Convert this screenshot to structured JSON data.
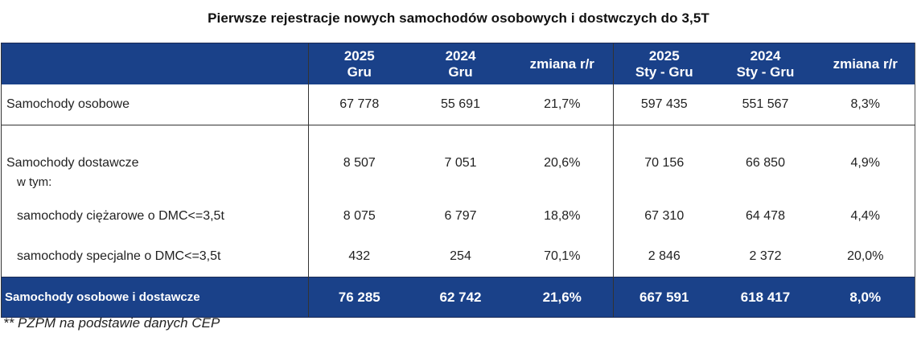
{
  "title": "Pierwsze rejestracje nowych samochodów osobowych i dostwczych do 3,5T",
  "header": {
    "label": "",
    "columns": [
      {
        "line1": "2025",
        "line2": "Gru"
      },
      {
        "line1": "2024",
        "line2": "Gru"
      },
      {
        "line1": "zmiana r/r",
        "line2": ""
      },
      {
        "line1": "2025",
        "line2": "Sty - Gru"
      },
      {
        "line1": "2024",
        "line2": "Sty - Gru"
      },
      {
        "line1": "zmiana r/r",
        "line2": ""
      }
    ]
  },
  "rows": [
    {
      "label": "Samochody osobowe",
      "values": [
        "67 778",
        "55 691",
        "21,7%",
        "597 435",
        "551 567",
        "8,3%"
      ]
    },
    {
      "label": "Samochody dostawcze",
      "values": [
        "8 507",
        "7 051",
        "20,6%",
        "70 156",
        "66 850",
        "4,9%"
      ]
    },
    {
      "label": "w tym:",
      "values": [
        "",
        "",
        "",
        "",
        "",
        ""
      ]
    },
    {
      "label": "samochody ciężarowe o DMC<=3,5t",
      "values": [
        "8 075",
        "6 797",
        "18,8%",
        "67 310",
        "64 478",
        "4,4%"
      ]
    },
    {
      "label": "samochody specjalne o DMC<=3,5t",
      "values": [
        "432",
        "254",
        "70,1%",
        "2 846",
        "2 372",
        "20,0%"
      ]
    }
  ],
  "total": {
    "label": "Samochody osobowe i dostawcze",
    "values": [
      "76 285",
      "62 742",
      "21,6%",
      "667 591",
      "618 417",
      "8,0%"
    ]
  },
  "footnote": "** PZPM na podstawie danych CEP",
  "colors": {
    "header_bg": "#1a4189",
    "header_text": "#ffffff",
    "border": "#333333"
  }
}
